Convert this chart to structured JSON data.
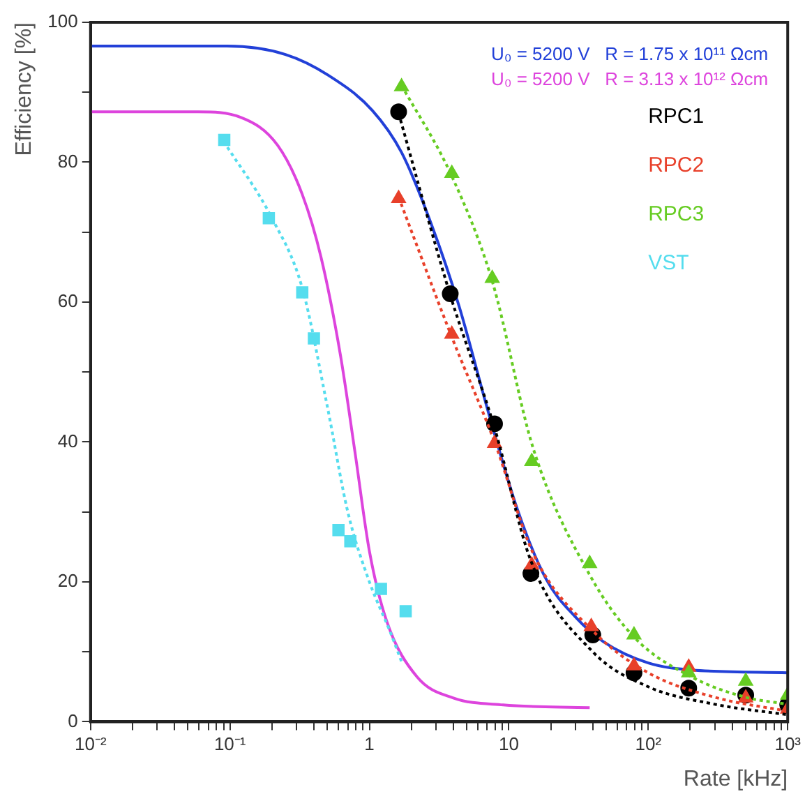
{
  "chart_data": {
    "type": "scatter",
    "xlabel": "Rate [kHz]",
    "ylabel": "Efficiency [%]",
    "log": "x",
    "grid": false,
    "legend": "top right",
    "xlim": [
      0.01,
      1000
    ],
    "ylim": [
      0,
      100
    ],
    "xticks": [
      {
        "value": 0.01,
        "label": "10⁻²"
      },
      {
        "value": 0.02,
        "label": null
      },
      {
        "value": 0.03,
        "label": null
      },
      {
        "value": 0.04,
        "label": null
      },
      {
        "value": 0.05,
        "label": null
      },
      {
        "value": 0.06,
        "label": null
      },
      {
        "value": 0.07,
        "label": null
      },
      {
        "value": 0.08,
        "label": null
      },
      {
        "value": 0.09,
        "label": null
      },
      {
        "value": 0.1,
        "label": "10⁻¹"
      },
      {
        "value": 0.2,
        "label": null
      },
      {
        "value": 0.3,
        "label": null
      },
      {
        "value": 0.4,
        "label": null
      },
      {
        "value": 0.5,
        "label": null
      },
      {
        "value": 0.6,
        "label": null
      },
      {
        "value": 0.7,
        "label": null
      },
      {
        "value": 0.8,
        "label": null
      },
      {
        "value": 0.9,
        "label": null
      },
      1,
      {
        "value": 2,
        "label": null
      },
      {
        "value": 3,
        "label": null
      },
      {
        "value": 4,
        "label": null
      },
      {
        "value": 5,
        "label": null
      },
      {
        "value": 6,
        "label": null
      },
      {
        "value": 7,
        "label": null
      },
      {
        "value": 8,
        "label": null
      },
      {
        "value": 9,
        "label": null
      },
      10,
      {
        "value": 20,
        "label": null
      },
      {
        "value": 30,
        "label": null
      },
      {
        "value": 40,
        "label": null
      },
      {
        "value": 50,
        "label": null
      },
      {
        "value": 60,
        "label": null
      },
      {
        "value": 70,
        "label": null
      },
      {
        "value": 80,
        "label": null
      },
      {
        "value": 90,
        "label": null
      },
      {
        "value": 100,
        "label": "10²"
      },
      {
        "value": 200,
        "label": null
      },
      {
        "value": 300,
        "label": null
      },
      {
        "value": 400,
        "label": null
      },
      {
        "value": 500,
        "label": null
      },
      {
        "value": 600,
        "label": null
      },
      {
        "value": 700,
        "label": null
      },
      {
        "value": 800,
        "label": null
      },
      {
        "value": 900,
        "label": null
      },
      {
        "value": 1000,
        "label": "10³"
      }
    ],
    "yticks": [
      0,
      {
        "value": 10,
        "label": null
      },
      20,
      {
        "value": 30,
        "label": null
      },
      40,
      {
        "value": 50,
        "label": null
      },
      60,
      {
        "value": 70,
        "label": null
      },
      80,
      {
        "value": 90,
        "label": null
      },
      100
    ],
    "series": [
      {
        "name": "U₀ = 5200 V   R = 1.75 x 10¹¹ Ωcm",
        "type": "line",
        "color": "#2240d8",
        "line_style": "solid",
        "marker": "none",
        "x": [
          0.01,
          0.095,
          0.25,
          0.51,
          1.05,
          1.7,
          2.75,
          4.4,
          7.1,
          11.5,
          18.5,
          30,
          48,
          100,
          205,
          1000
        ],
        "values": [
          96.6,
          96.6,
          95.4,
          92.4,
          87.4,
          81.4,
          71.4,
          59.4,
          44.4,
          30.4,
          20.4,
          15,
          11.4,
          8.4,
          7.4,
          7
        ]
      },
      {
        "name": "U₀ = 5200 V   R = 3.13 x 10¹² Ωcm",
        "type": "line",
        "color": "#dd44dd",
        "line_style": "solid",
        "marker": "none",
        "x": [
          0.01,
          0.059,
          0.12,
          0.22,
          0.33,
          0.45,
          0.62,
          0.79,
          1,
          1.33,
          2.2,
          4,
          9.1,
          38
        ],
        "values": [
          87.2,
          87.2,
          86.4,
          82.4,
          75.4,
          66.4,
          52.4,
          38.4,
          24.4,
          14.4,
          6.4,
          3.4,
          2.4,
          2
        ]
      },
      {
        "name": "RPC1",
        "color": "#000000",
        "marker": "circle",
        "x": [
          1.62,
          3.8,
          7.9,
          14.4,
          40,
          79,
          195,
          500,
          1000
        ],
        "values": [
          87.2,
          61.2,
          42.6,
          21.2,
          12.4,
          7,
          4.8,
          3.8,
          2.4
        ]
      },
      {
        "name": "RPC2",
        "color": "#e8402a",
        "marker": "triangle",
        "x": [
          1.62,
          3.9,
          7.9,
          14.6,
          39,
          79,
          195,
          500,
          1000
        ],
        "values": [
          74.8,
          55.4,
          39.8,
          22.4,
          13.6,
          8,
          7.8,
          3.4,
          1.8
        ]
      },
      {
        "name": "RPC3",
        "color": "#66cc22",
        "marker": "triangle",
        "x": [
          1.7,
          3.9,
          7.6,
          14.6,
          38,
          79,
          195,
          500,
          1000
        ],
        "values": [
          90.8,
          78.4,
          63.4,
          37.2,
          22.6,
          12.4,
          7,
          5.8,
          3.8
        ]
      },
      {
        "name": "VST",
        "color": "#55ddee",
        "marker": "square",
        "x": [
          0.091,
          0.19,
          0.33,
          0.4,
          0.6,
          0.73,
          1.21,
          1.82
        ],
        "values": [
          83.2,
          72,
          61.4,
          54.8,
          27.4,
          25.8,
          19,
          15.8
        ]
      },
      {
        "type": "line",
        "color": "#000000",
        "line_style": "dotted",
        "marker": "none",
        "x": [
          1.62,
          3.8,
          7.9,
          14.4,
          40,
          100,
          300,
          1000
        ],
        "values": [
          87,
          61,
          42,
          23,
          10,
          5,
          2.5,
          1
        ]
      },
      {
        "type": "line",
        "color": "#e8402a",
        "line_style": "dotted",
        "marker": "none",
        "x": [
          1.62,
          3.9,
          7.9,
          15,
          40,
          100,
          300,
          1000
        ],
        "values": [
          75,
          55,
          40,
          24,
          13,
          7,
          3.5,
          1.5
        ]
      },
      {
        "type": "line",
        "color": "#66cc22",
        "line_style": "dotted",
        "marker": "none",
        "x": [
          1.7,
          3.9,
          7.6,
          15,
          38,
          80,
          200,
          500,
          1000
        ],
        "values": [
          91,
          78,
          63,
          39,
          21,
          12,
          6.5,
          3.5,
          2.5
        ]
      },
      {
        "type": "line",
        "color": "#55ddee",
        "line_style": "dotted",
        "marker": "none",
        "x": [
          0.09,
          0.2,
          0.33,
          0.5,
          0.7,
          1,
          1.4,
          1.7
        ],
        "values": [
          83,
          72,
          62,
          45,
          30,
          20,
          13,
          8.6
        ]
      }
    ]
  }
}
